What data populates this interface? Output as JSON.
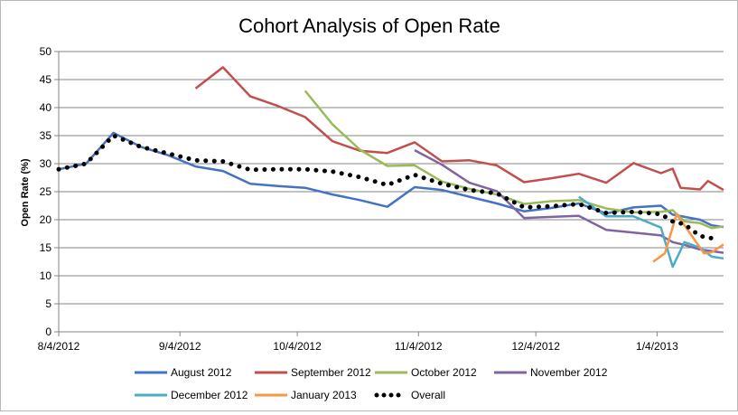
{
  "chart_data": {
    "type": "line",
    "title": "Cohort Analysis of Open Rate",
    "xlabel": "",
    "ylabel": "Open Rate (%)",
    "ylim": [
      0,
      50
    ],
    "yticks": [
      0,
      5,
      10,
      15,
      20,
      25,
      30,
      35,
      40,
      45,
      50
    ],
    "xlim": [
      "2012-08-04",
      "2013-01-21"
    ],
    "xticks": [
      {
        "date": "2012-08-04",
        "label": "8/4/2012"
      },
      {
        "date": "2012-09-04",
        "label": "9/4/2012"
      },
      {
        "date": "2012-10-04",
        "label": "10/4/2012"
      },
      {
        "date": "2012-11-04",
        "label": "11/4/2012"
      },
      {
        "date": "2012-12-04",
        "label": "12/4/2012"
      },
      {
        "date": "2013-01-04",
        "label": "1/4/2013"
      }
    ],
    "grid": "horizontal",
    "legend_position": "bottom",
    "series": [
      {
        "name": "August 2012",
        "color": "#4472C4",
        "style": "line",
        "points": [
          [
            "2012-08-04",
            29.0
          ],
          [
            "2012-08-11",
            30.0
          ],
          [
            "2012-08-18",
            35.5
          ],
          [
            "2012-08-25",
            33.0
          ],
          [
            "2012-09-01",
            31.5
          ],
          [
            "2012-09-08",
            29.5
          ],
          [
            "2012-09-15",
            28.7
          ],
          [
            "2012-09-22",
            26.4
          ],
          [
            "2012-09-29",
            26.0
          ],
          [
            "2012-10-06",
            25.7
          ],
          [
            "2012-10-13",
            24.5
          ],
          [
            "2012-10-20",
            23.5
          ],
          [
            "2012-10-27",
            22.3
          ],
          [
            "2012-11-03",
            25.8
          ],
          [
            "2012-11-10",
            25.3
          ],
          [
            "2012-11-17",
            24.1
          ],
          [
            "2012-11-24",
            22.9
          ],
          [
            "2012-12-01",
            21.5
          ],
          [
            "2012-12-08",
            22.1
          ],
          [
            "2012-12-15",
            22.9
          ],
          [
            "2012-12-22",
            21.1
          ],
          [
            "2012-12-29",
            22.2
          ],
          [
            "2013-01-05",
            22.5
          ],
          [
            "2013-01-08",
            20.9
          ],
          [
            "2013-01-15",
            20.0
          ],
          [
            "2013-01-18",
            19.0
          ],
          [
            "2013-01-21",
            18.7
          ]
        ]
      },
      {
        "name": "September 2012",
        "color": "#C0504D",
        "style": "line",
        "points": [
          [
            "2012-09-08",
            43.4
          ],
          [
            "2012-09-15",
            47.2
          ],
          [
            "2012-09-22",
            42.0
          ],
          [
            "2012-09-29",
            40.3
          ],
          [
            "2012-10-06",
            38.3
          ],
          [
            "2012-10-13",
            34.0
          ],
          [
            "2012-10-20",
            32.3
          ],
          [
            "2012-10-27",
            31.9
          ],
          [
            "2012-11-03",
            33.8
          ],
          [
            "2012-11-10",
            30.4
          ],
          [
            "2012-11-17",
            30.6
          ],
          [
            "2012-11-24",
            29.7
          ],
          [
            "2012-12-01",
            26.7
          ],
          [
            "2012-12-08",
            27.4
          ],
          [
            "2012-12-15",
            28.2
          ],
          [
            "2012-12-22",
            26.6
          ],
          [
            "2012-12-29",
            30.1
          ],
          [
            "2013-01-05",
            28.3
          ],
          [
            "2013-01-08",
            29.1
          ],
          [
            "2013-01-10",
            25.7
          ],
          [
            "2013-01-15",
            25.4
          ],
          [
            "2013-01-17",
            26.9
          ],
          [
            "2013-01-21",
            25.3
          ]
        ]
      },
      {
        "name": "October 2012",
        "color": "#9BBB59",
        "style": "line",
        "points": [
          [
            "2012-10-06",
            43.0
          ],
          [
            "2012-10-13",
            37.0
          ],
          [
            "2012-10-20",
            32.5
          ],
          [
            "2012-10-27",
            29.6
          ],
          [
            "2012-11-03",
            29.7
          ],
          [
            "2012-11-10",
            26.8
          ],
          [
            "2012-11-17",
            25.5
          ],
          [
            "2012-11-24",
            24.5
          ],
          [
            "2012-12-01",
            22.8
          ],
          [
            "2012-12-08",
            23.3
          ],
          [
            "2012-12-15",
            23.5
          ],
          [
            "2012-12-22",
            22.0
          ],
          [
            "2012-12-29",
            21.3
          ],
          [
            "2013-01-05",
            21.4
          ],
          [
            "2013-01-08",
            21.7
          ],
          [
            "2013-01-11",
            19.7
          ],
          [
            "2013-01-15",
            19.4
          ],
          [
            "2013-01-18",
            18.5
          ],
          [
            "2013-01-21",
            18.8
          ]
        ]
      },
      {
        "name": "November 2012",
        "color": "#8064A2",
        "style": "line",
        "points": [
          [
            "2012-11-03",
            32.4
          ],
          [
            "2012-11-10",
            29.8
          ],
          [
            "2012-11-17",
            26.6
          ],
          [
            "2012-11-24",
            25.1
          ],
          [
            "2012-12-01",
            20.3
          ],
          [
            "2012-12-08",
            20.5
          ],
          [
            "2012-12-15",
            20.7
          ],
          [
            "2012-12-22",
            18.2
          ],
          [
            "2012-12-29",
            17.7
          ],
          [
            "2013-01-05",
            17.2
          ],
          [
            "2013-01-08",
            16.0
          ],
          [
            "2013-01-11",
            15.5
          ],
          [
            "2013-01-15",
            14.7
          ],
          [
            "2013-01-21",
            14.1
          ]
        ]
      },
      {
        "name": "December 2012",
        "color": "#4BACC6",
        "style": "line",
        "points": [
          [
            "2012-12-15",
            24.1
          ],
          [
            "2012-12-22",
            20.6
          ],
          [
            "2012-12-29",
            20.6
          ],
          [
            "2013-01-05",
            18.6
          ],
          [
            "2013-01-08",
            11.6
          ],
          [
            "2013-01-11",
            16.0
          ],
          [
            "2013-01-15",
            15.0
          ],
          [
            "2013-01-18",
            13.4
          ],
          [
            "2013-01-21",
            13.1
          ]
        ]
      },
      {
        "name": "January 2013",
        "color": "#F79646",
        "style": "line",
        "points": [
          [
            "2013-01-03",
            12.5
          ],
          [
            "2013-01-06",
            14.0
          ],
          [
            "2013-01-09",
            21.0
          ],
          [
            "2013-01-13",
            17.0
          ],
          [
            "2013-01-16",
            14.0
          ],
          [
            "2013-01-18",
            14.2
          ],
          [
            "2013-01-21",
            15.6
          ]
        ]
      },
      {
        "name": "Overall",
        "color": "#000000",
        "style": "dotted",
        "points": [
          [
            "2012-08-04",
            29.0
          ],
          [
            "2012-08-11",
            30.0
          ],
          [
            "2012-08-18",
            35.0
          ],
          [
            "2012-08-25",
            33.0
          ],
          [
            "2012-09-01",
            31.8
          ],
          [
            "2012-09-08",
            30.6
          ],
          [
            "2012-09-15",
            30.4
          ],
          [
            "2012-09-22",
            28.9
          ],
          [
            "2012-09-29",
            29.0
          ],
          [
            "2012-10-06",
            29.0
          ],
          [
            "2012-10-13",
            28.6
          ],
          [
            "2012-10-20",
            27.6
          ],
          [
            "2012-10-27",
            26.2
          ],
          [
            "2012-11-03",
            28.0
          ],
          [
            "2012-11-10",
            26.4
          ],
          [
            "2012-11-17",
            25.3
          ],
          [
            "2012-11-24",
            24.7
          ],
          [
            "2012-12-01",
            22.2
          ],
          [
            "2012-12-08",
            22.4
          ],
          [
            "2012-12-15",
            22.8
          ],
          [
            "2012-12-22",
            21.2
          ],
          [
            "2012-12-29",
            21.4
          ],
          [
            "2013-01-05",
            21.0
          ],
          [
            "2013-01-08",
            19.7
          ],
          [
            "2013-01-11",
            19.2
          ],
          [
            "2013-01-15",
            17.1
          ],
          [
            "2013-01-18",
            16.7
          ]
        ]
      }
    ]
  }
}
